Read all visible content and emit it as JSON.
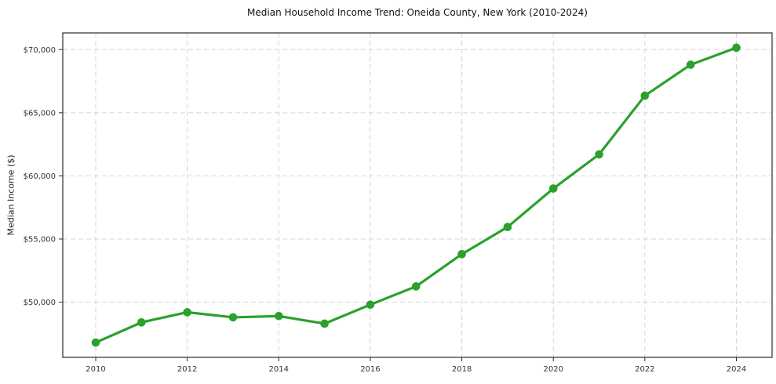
{
  "chart_data": {
    "type": "line",
    "title": "Median Household Income Trend: Oneida County, New York (2010-2024)",
    "xlabel": "",
    "ylabel": "Median Income ($)",
    "x": [
      2010,
      2011,
      2012,
      2013,
      2014,
      2015,
      2016,
      2017,
      2018,
      2019,
      2020,
      2021,
      2022,
      2023,
      2024
    ],
    "values": [
      46800,
      48400,
      49200,
      48800,
      48900,
      48300,
      49800,
      51250,
      53800,
      55950,
      59000,
      61700,
      66350,
      68800,
      70150
    ],
    "xticks": [
      2010,
      2012,
      2014,
      2016,
      2018,
      2020,
      2022,
      2024
    ],
    "xtick_labels": [
      "2010",
      "2012",
      "2014",
      "2016",
      "2018",
      "2020",
      "2022",
      "2024"
    ],
    "yticks": [
      50000,
      55000,
      60000,
      65000,
      70000
    ],
    "ytick_labels": [
      "$50,000",
      "$55,000",
      "$60,000",
      "$65,000",
      "$70,000"
    ],
    "xlim": [
      2009.28,
      2024.78
    ],
    "ylim": [
      45630,
      71320
    ],
    "grid": true,
    "legend": false,
    "line_color": "#2ca02c",
    "marker": "circle",
    "marker_size": 5.3,
    "line_width": 3.2,
    "grid_color": "#d5d5d5",
    "spine_color": "#2b2b2b",
    "tick_text_color": "#333333",
    "background_color": "#ffffff"
  }
}
